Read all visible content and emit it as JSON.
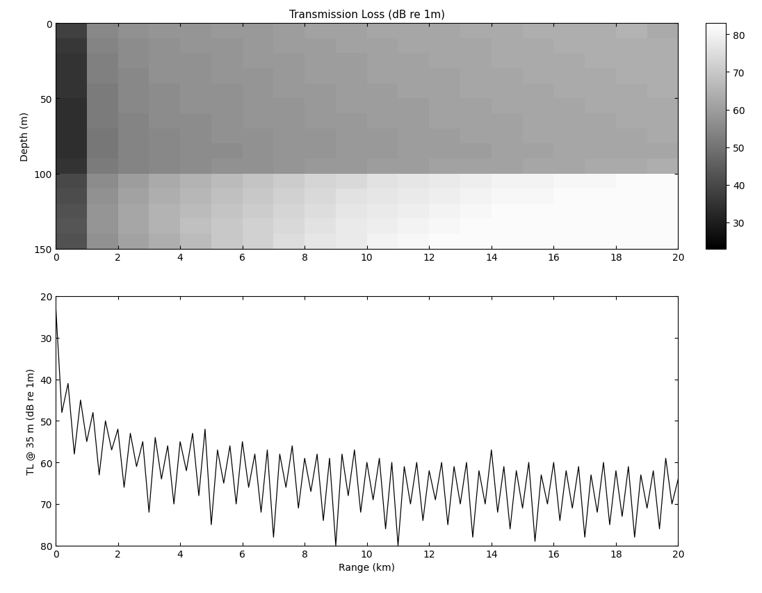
{
  "chart_data": [
    {
      "type": "heatmap",
      "title": "Transmission Loss (dB re 1m)",
      "ylabel": "Depth (m)",
      "xlim": [
        0,
        20
      ],
      "xticks": [
        0,
        2,
        4,
        6,
        8,
        10,
        12,
        14,
        16,
        18,
        20
      ],
      "ylim": [
        150,
        0
      ],
      "yticks": [
        0,
        50,
        100,
        150
      ],
      "x_edges": [
        0,
        1,
        2,
        3,
        4,
        5,
        6,
        7,
        8,
        9,
        10,
        11,
        12,
        13,
        14,
        15,
        16,
        17,
        18,
        19,
        20
      ],
      "y_edges": [
        0,
        10,
        20,
        30,
        40,
        50,
        60,
        70,
        80,
        90,
        100,
        110,
        120,
        130,
        140,
        150
      ],
      "cells": [
        [
          38,
          55,
          57,
          58,
          58,
          59,
          59,
          60,
          61,
          61,
          62,
          62,
          62,
          63,
          63,
          64,
          64,
          64,
          65,
          63
        ],
        [
          36,
          54,
          56,
          57,
          58,
          58,
          59,
          60,
          60,
          61,
          61,
          62,
          62,
          62,
          63,
          63,
          64,
          64,
          64,
          64
        ],
        [
          35,
          53,
          56,
          57,
          57,
          58,
          59,
          59,
          60,
          60,
          61,
          61,
          62,
          62,
          63,
          63,
          63,
          64,
          64,
          64
        ],
        [
          35,
          53,
          55,
          57,
          57,
          58,
          58,
          59,
          60,
          60,
          61,
          61,
          61,
          62,
          62,
          63,
          63,
          63,
          64,
          64
        ],
        [
          35,
          52,
          55,
          56,
          57,
          57,
          58,
          59,
          59,
          60,
          60,
          61,
          61,
          62,
          62,
          62,
          63,
          63,
          63,
          64
        ],
        [
          34,
          52,
          55,
          56,
          57,
          57,
          58,
          58,
          59,
          60,
          60,
          60,
          61,
          61,
          62,
          62,
          62,
          63,
          63,
          63
        ],
        [
          34,
          52,
          54,
          56,
          56,
          57,
          58,
          58,
          59,
          59,
          60,
          60,
          61,
          61,
          61,
          62,
          62,
          62,
          63,
          63
        ],
        [
          34,
          51,
          54,
          55,
          56,
          57,
          57,
          58,
          58,
          59,
          59,
          60,
          60,
          61,
          61,
          62,
          62,
          62,
          62,
          63
        ],
        [
          34,
          51,
          54,
          55,
          56,
          56,
          57,
          58,
          58,
          59,
          59,
          60,
          60,
          60,
          61,
          61,
          62,
          62,
          62,
          62
        ],
        [
          35,
          52,
          54,
          55,
          56,
          57,
          57,
          58,
          59,
          59,
          60,
          60,
          61,
          61,
          61,
          62,
          62,
          63,
          63,
          64
        ],
        [
          40,
          56,
          60,
          63,
          65,
          67,
          69,
          71,
          73,
          74,
          76,
          77,
          78,
          79,
          80,
          80,
          81,
          81,
          82,
          82
        ],
        [
          41,
          57,
          61,
          64,
          66,
          68,
          70,
          72,
          74,
          76,
          77,
          78,
          79,
          80,
          81,
          81,
          82,
          82,
          82,
          82
        ],
        [
          42,
          58,
          62,
          65,
          67,
          69,
          71,
          73,
          75,
          77,
          78,
          79,
          80,
          81,
          82,
          82,
          82,
          82,
          82,
          82
        ],
        [
          43,
          58,
          62,
          65,
          68,
          70,
          72,
          74,
          76,
          78,
          79,
          80,
          81,
          82,
          82,
          82,
          82,
          82,
          82,
          82
        ],
        [
          42,
          57,
          61,
          64,
          67,
          70,
          72,
          75,
          77,
          78,
          80,
          81,
          82,
          82,
          82,
          82,
          82,
          82,
          82,
          82
        ]
      ],
      "colorbar_range": [
        23,
        83
      ],
      "colorbar_ticks": [
        30,
        40,
        50,
        60,
        70,
        80
      ]
    },
    {
      "type": "line",
      "xlabel": "Range (km)",
      "ylabel": "TL @ 35 m (dB re 1m)",
      "color": "#000000",
      "xlim": [
        0,
        20
      ],
      "xticks": [
        0,
        2,
        4,
        6,
        8,
        10,
        12,
        14,
        16,
        18,
        20
      ],
      "ylim": [
        80,
        20
      ],
      "yticks": [
        20,
        30,
        40,
        50,
        60,
        70,
        80
      ],
      "x": [
        0,
        0.2,
        0.4,
        0.6,
        0.8,
        1.0,
        1.2,
        1.4,
        1.6,
        1.8,
        2.0,
        2.2,
        2.4,
        2.6,
        2.8,
        3.0,
        3.2,
        3.4,
        3.6,
        3.8,
        4.0,
        4.2,
        4.4,
        4.6,
        4.8,
        5.0,
        5.2,
        5.4,
        5.6,
        5.8,
        6.0,
        6.2,
        6.4,
        6.6,
        6.8,
        7.0,
        7.2,
        7.4,
        7.6,
        7.8,
        8.0,
        8.2,
        8.4,
        8.6,
        8.8,
        9.0,
        9.2,
        9.4,
        9.6,
        9.8,
        10.0,
        10.2,
        10.4,
        10.6,
        10.8,
        11.0,
        11.2,
        11.4,
        11.6,
        11.8,
        12.0,
        12.2,
        12.4,
        12.6,
        12.8,
        13.0,
        13.2,
        13.4,
        13.6,
        13.8,
        14.0,
        14.2,
        14.4,
        14.6,
        14.8,
        15.0,
        15.2,
        15.4,
        15.6,
        15.8,
        16.0,
        16.2,
        16.4,
        16.6,
        16.8,
        17.0,
        17.2,
        17.4,
        17.6,
        17.8,
        18.0,
        18.2,
        18.4,
        18.6,
        18.8,
        19.0,
        19.2,
        19.4,
        19.6,
        19.8,
        20.0
      ],
      "values": [
        22,
        48,
        41,
        58,
        45,
        55,
        48,
        63,
        50,
        57,
        52,
        66,
        53,
        61,
        55,
        72,
        54,
        64,
        56,
        70,
        55,
        62,
        53,
        68,
        52,
        75,
        57,
        65,
        56,
        70,
        55,
        66,
        58,
        72,
        57,
        78,
        58,
        66,
        56,
        71,
        59,
        67,
        58,
        74,
        59,
        80,
        58,
        68,
        57,
        72,
        60,
        69,
        59,
        76,
        60,
        80,
        61,
        70,
        60,
        74,
        62,
        69,
        60,
        75,
        61,
        70,
        60,
        78,
        62,
        70,
        57,
        72,
        61,
        76,
        62,
        71,
        60,
        79,
        63,
        70,
        60,
        74,
        62,
        71,
        61,
        78,
        63,
        72,
        60,
        75,
        62,
        73,
        61,
        78,
        63,
        71,
        62,
        76,
        59,
        70,
        64
      ]
    }
  ]
}
